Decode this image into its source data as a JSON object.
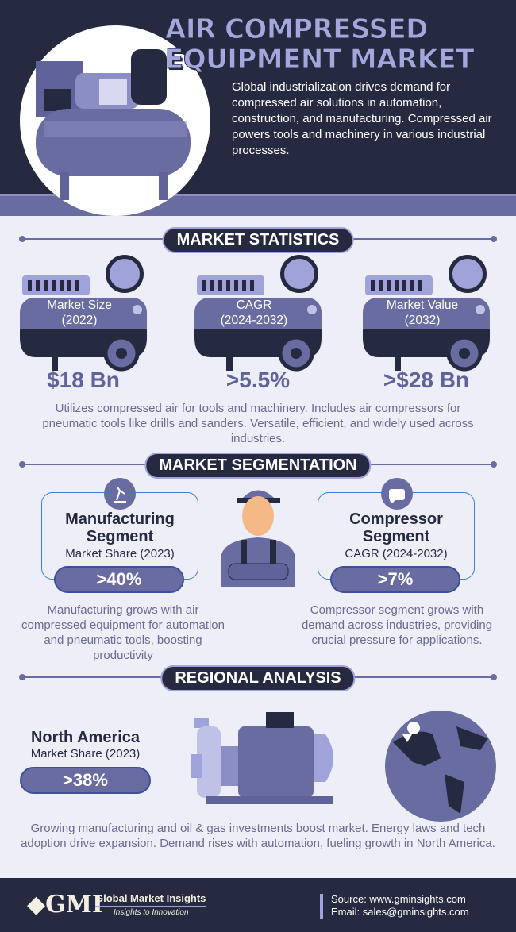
{
  "header": {
    "title_line1": "AIR COMPRESSED",
    "title_line2": "EQUIPMENT MARKET",
    "description": "Global industrialization drives demand for compressed air solutions in automation, construction, and manufacturing. Compressed air powers tools and machinery in various industrial processes."
  },
  "stats": {
    "heading": "MARKET STATISTICS",
    "items": [
      {
        "label1": "Market Size",
        "label2": "(2022)",
        "value": "$18 Bn",
        "icon": "pie-chart-icon"
      },
      {
        "label1": "CAGR",
        "label2": "(2024-2032)",
        "value": ">5.5%",
        "icon": "bar-chart-growth-icon"
      },
      {
        "label1": "Market Value",
        "label2": "(2032)",
        "value": ">$28 Bn",
        "icon": "coins-growth-icon"
      }
    ],
    "description": "Utilizes compressed air for tools and machinery. Includes air compressors for pneumatic tools like drills and sanders. Versatile, efficient, and widely used across industries."
  },
  "segmentation": {
    "heading": "MARKET SEGMENTATION",
    "items": [
      {
        "title1": "Manufacturing",
        "title2": "Segment",
        "sub": "Market Share (2023)",
        "value": ">40%",
        "icon": "robot-arm-icon",
        "description": "Manufacturing grows with air compressed equipment for automation and pneumatic tools, boosting productivity"
      },
      {
        "title1": "Compressor",
        "title2": "Segment",
        "sub": "CAGR (2024-2032)",
        "value": ">7%",
        "icon": "compressor-icon",
        "description": "Compressor segment grows with demand across industries, providing crucial pressure for applications."
      }
    ]
  },
  "regional": {
    "heading": "REGIONAL ANALYSIS",
    "region": "North America",
    "sub": "Market Share (2023)",
    "value": ">38%",
    "description": "Growing manufacturing and oil & gas investments boost market. Energy laws and tech adoption drive expansion. Demand rises with automation, fueling growth in North America."
  },
  "footer": {
    "brand": "Global Market Insights",
    "tagline": "Insights to Innovation",
    "logo": "GMI",
    "source": "Source: www.gminsights.com",
    "email": "Email: sales@gminsights.com"
  },
  "colors": {
    "navy": "#262a40",
    "lavender": "#9fa3d9",
    "purple": "#686ca0",
    "background": "#eeeef8"
  }
}
